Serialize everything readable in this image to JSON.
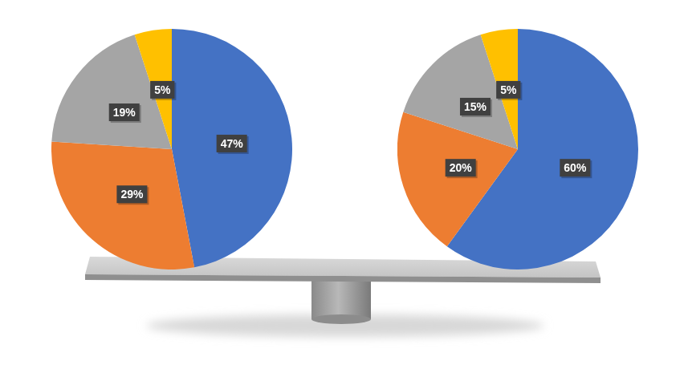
{
  "chart_data": [
    {
      "type": "pie",
      "categories": [
        null,
        null,
        null,
        null
      ],
      "values": [
        47,
        29,
        19,
        5
      ],
      "value_labels": [
        "47%",
        "29%",
        "19%",
        "5%"
      ],
      "colors": [
        "#4472c4",
        "#ed7d31",
        "#a5a5a5",
        "#ffc000"
      ],
      "data_labels": true
    },
    {
      "type": "pie",
      "categories": [
        null,
        null,
        null,
        null
      ],
      "values": [
        60,
        20,
        15,
        5
      ],
      "value_labels": [
        "60%",
        "20%",
        "15%",
        "5%"
      ],
      "colors": [
        "#4472c4",
        "#ed7d31",
        "#a5a5a5",
        "#ffc000"
      ],
      "data_labels": true
    }
  ]
}
